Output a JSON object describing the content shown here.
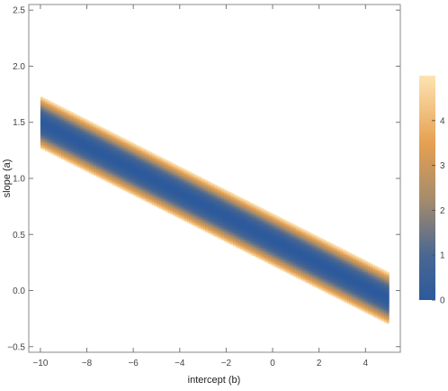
{
  "chart_data": {
    "type": "heatmap",
    "title": "",
    "xlabel": "intercept (b)",
    "ylabel": "slope (a)",
    "xlim": [
      -10.5,
      5.5
    ],
    "ylim": [
      -0.55,
      2.55
    ],
    "x_ticks": [
      -10,
      -8,
      -6,
      -4,
      -2,
      0,
      2,
      4
    ],
    "x_tick_labels": [
      "−10",
      "−8",
      "−6",
      "−4",
      "−2",
      "0",
      "2",
      "4"
    ],
    "y_ticks": [
      -0.5,
      0.0,
      0.5,
      1.0,
      1.5,
      2.0,
      2.5
    ],
    "y_tick_labels": [
      "−0.5",
      "0.0",
      "0.5",
      "1.0",
      "1.5",
      "2.0",
      "2.5"
    ],
    "b_range": [
      -10,
      5
    ],
    "valley": {
      "slope_at_b_min": 1.5,
      "slope_at_b_max": -0.07
    },
    "band_halfwidth_a": 0.23,
    "band_value_at_edge": 5,
    "colorbar": {
      "range": [
        0,
        5
      ],
      "ticks": [
        0,
        1,
        2,
        3,
        4
      ],
      "tick_labels": [
        "0",
        "1",
        "2",
        "3",
        "4"
      ],
      "colors": [
        "#2c5a9c",
        "#4a6792",
        "#a58c6c",
        "#e6a052",
        "#fde4b2"
      ]
    },
    "grid": false,
    "legend": "right"
  }
}
